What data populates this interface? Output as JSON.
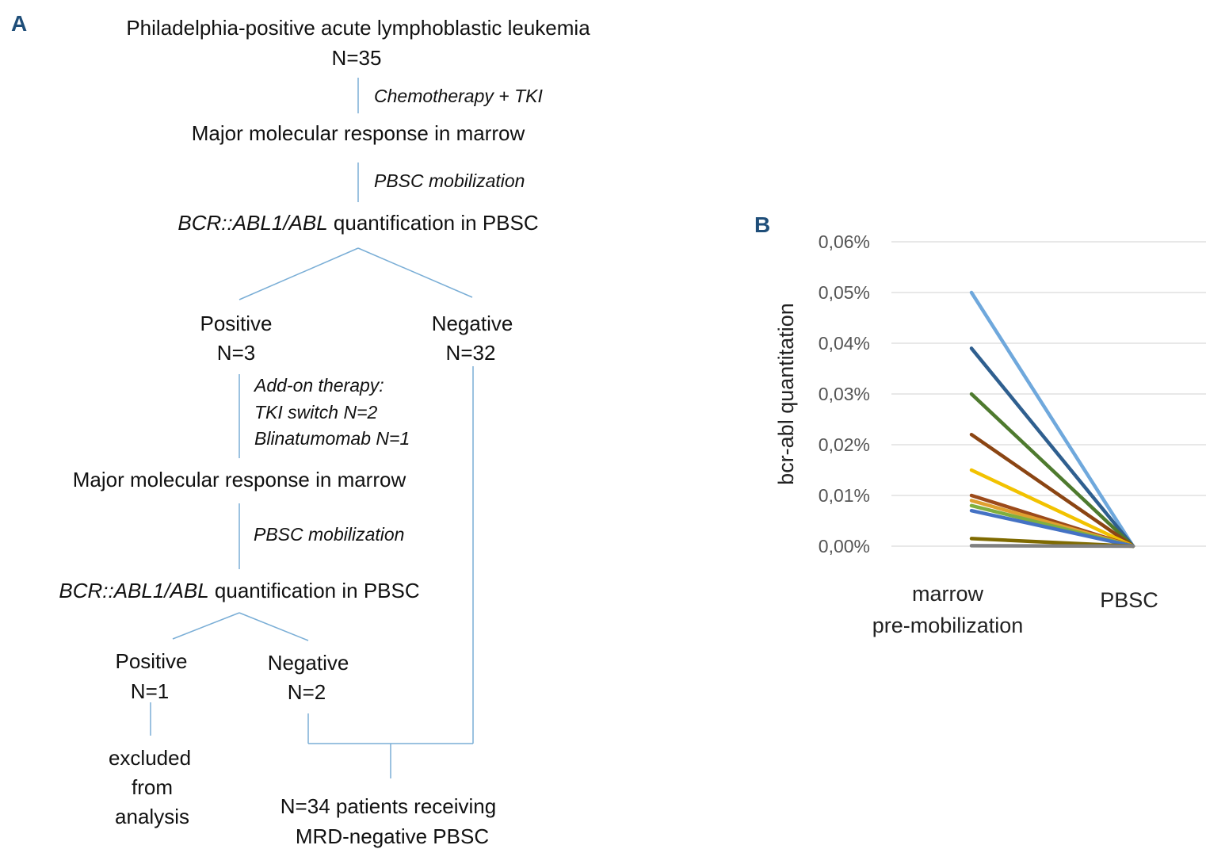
{
  "panel_a": {
    "label": "A",
    "title": "Philadelphia-positive acute lymphoblastic leukemia",
    "n_total": "N=35",
    "step1": "Chemotherapy + TKI",
    "response1": "Major molecular response in marrow",
    "step2": "PBSC mobilization",
    "quant1_gene": "BCR::ABL1/ABL",
    "quant1_rest": " quantification in PBSC",
    "pos1": "Positive",
    "pos1_n": "N=3",
    "neg1": "Negative",
    "neg1_n": "N=32",
    "addon_title": "Add-on therapy:",
    "addon_tki": "TKI switch N=2",
    "addon_blina": "Blinatumomab N=1",
    "response2": "Major molecular response in marrow",
    "step3": "PBSC mobilization",
    "quant2_gene": "BCR::ABL1/ABL",
    "quant2_rest": " quantification in PBSC",
    "pos2": "Positive",
    "pos2_n": "N=1",
    "neg2": "Negative",
    "neg2_n": "N=2",
    "excluded_1": "excluded",
    "excluded_2": "from",
    "excluded_3": "analysis",
    "final_1": "N=34 patients receiving",
    "final_2": "MRD-negative PBSC"
  },
  "panel_b": {
    "label": "B"
  },
  "chart_data": {
    "type": "line",
    "ylabel": "bcr-abl quantitation",
    "xlabel": "",
    "categories": [
      "marrow pre-mobilization",
      "PBSC"
    ],
    "category_lines": [
      [
        "marrow",
        "pre-mobilization"
      ],
      [
        "PBSC"
      ]
    ],
    "ylim": [
      0,
      0.06
    ],
    "yticks": [
      "0,00%",
      "0,01%",
      "0,02%",
      "0,03%",
      "0,04%",
      "0,05%",
      "0,06%"
    ],
    "grid": true,
    "series": [
      {
        "values": [
          0.05,
          0
        ],
        "color": "#6fa8dc"
      },
      {
        "values": [
          0.039,
          0
        ],
        "color": "#2f5f8f"
      },
      {
        "values": [
          0.03,
          0
        ],
        "color": "#4e7a2e"
      },
      {
        "values": [
          0.022,
          0
        ],
        "color": "#8b4513"
      },
      {
        "values": [
          0.015,
          0
        ],
        "color": "#f2c200"
      },
      {
        "values": [
          0.01,
          0
        ],
        "color": "#9c4a1a"
      },
      {
        "values": [
          0.009,
          0
        ],
        "color": "#e0a030"
      },
      {
        "values": [
          0.008,
          0
        ],
        "color": "#7faf3f"
      },
      {
        "values": [
          0.007,
          0
        ],
        "color": "#4472c4"
      },
      {
        "values": [
          0.0015,
          0
        ],
        "color": "#7f6a00"
      },
      {
        "values": [
          0.0001,
          0
        ],
        "color": "#808080"
      }
    ]
  }
}
